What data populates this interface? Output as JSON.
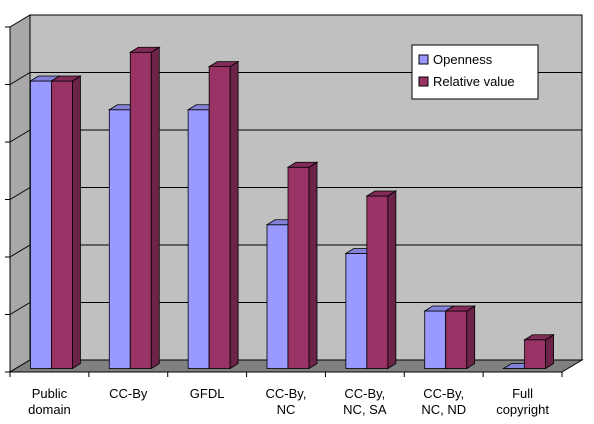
{
  "chart_data": {
    "type": "bar",
    "style": "3d-clustered-column",
    "categories": [
      [
        "Public",
        "domain"
      ],
      [
        "CC-By"
      ],
      [
        "GFDL"
      ],
      [
        "CC-By,",
        "NC"
      ],
      [
        "CC-By,",
        "NC, SA"
      ],
      [
        "CC-By,",
        "NC, ND"
      ],
      [
        "Full",
        "copyright"
      ]
    ],
    "series": [
      {
        "name": "Openness",
        "values": [
          5,
          4.5,
          4.5,
          2.5,
          2,
          1,
          0
        ],
        "color": "#9999ff"
      },
      {
        "name": "Relative value",
        "values": [
          5,
          5.5,
          5.25,
          3.5,
          3,
          1,
          0.5
        ],
        "color": "#993366"
      }
    ],
    "ylim": [
      0,
      6
    ],
    "y_ticks": [
      0,
      1,
      2,
      3,
      4,
      5,
      6
    ],
    "y_tick_labels_shown": false,
    "grid": true,
    "legend": "top-right",
    "colors": {
      "wall": "#c0c0c0",
      "floor": "#808080",
      "grid": "#000000"
    },
    "title": "",
    "xlabel": "",
    "ylabel": ""
  }
}
